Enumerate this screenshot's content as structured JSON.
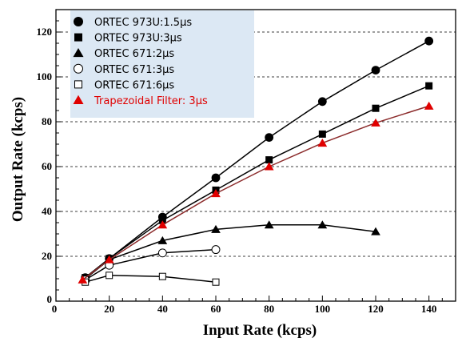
{
  "chart_data": {
    "type": "line",
    "title": "",
    "xlabel": "Input Rate (kcps)",
    "ylabel": "Output Rate (kcps)",
    "xlim": [
      0,
      150
    ],
    "ylim": [
      0,
      130
    ],
    "xticks": [
      0,
      20,
      40,
      60,
      80,
      100,
      120,
      140
    ],
    "yticks": [
      0,
      20,
      40,
      60,
      80,
      100,
      120
    ],
    "grid": "horizontal dashed",
    "legend_position": "top-left",
    "series": [
      {
        "name": "ORTEC 973U:1.5μs",
        "marker": "filled-circle",
        "color": "#000000",
        "x": [
          11,
          20,
          40,
          60,
          80,
          100,
          120,
          140
        ],
        "y": [
          10.5,
          19,
          37.5,
          55,
          73,
          89,
          103,
          116
        ]
      },
      {
        "name": "ORTEC 973U:3μs",
        "marker": "filled-square",
        "color": "#000000",
        "x": [
          11,
          20,
          40,
          60,
          80,
          100,
          120,
          140
        ],
        "y": [
          10.5,
          19,
          36,
          49.5,
          63,
          74.5,
          86,
          96
        ]
      },
      {
        "name": "ORTEC 671:2μs",
        "marker": "filled-triangle",
        "color": "#000000",
        "x": [
          11,
          20,
          40,
          60,
          80,
          100,
          120
        ],
        "y": [
          10,
          18.5,
          27,
          32,
          34,
          34,
          31
        ]
      },
      {
        "name": "ORTEC 671:3μs",
        "marker": "open-circle",
        "color": "#000000",
        "x": [
          11,
          20,
          40,
          60
        ],
        "y": [
          9.5,
          16,
          21.5,
          23
        ]
      },
      {
        "name": "ORTEC 671:6μs",
        "marker": "open-square",
        "color": "#000000",
        "x": [
          11,
          20,
          40,
          60
        ],
        "y": [
          8.5,
          11.5,
          11,
          8.5
        ]
      },
      {
        "name": "Trapezoidal Filter: 3μs",
        "marker": "filled-triangle",
        "color": "#e00000",
        "line_color": "#8b2a2a",
        "x": [
          10,
          20,
          40,
          60,
          80,
          100,
          120,
          140
        ],
        "y": [
          9.5,
          18.5,
          34,
          48,
          60,
          70.5,
          79.5,
          87
        ]
      }
    ]
  },
  "colors": {
    "legend_background": "#dce8f4",
    "red_series": "#e00000"
  }
}
